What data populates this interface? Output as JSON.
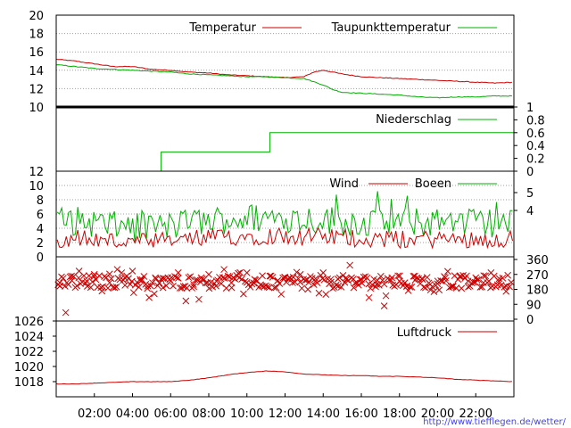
{
  "credit": "http://www.tiefflegen.de/wetter/",
  "x_ticks": [
    "02:00",
    "04:00",
    "06:00",
    "08:00",
    "10:00",
    "12:00",
    "14:00",
    "16:00",
    "18:00",
    "20:00",
    "22:00"
  ],
  "colors": {
    "red": "#cc0000",
    "green": "#00b000",
    "grid": "#a0a0a0",
    "axis": "#000000"
  },
  "chart_data": [
    {
      "type": "line",
      "x_unit": "hours",
      "x_range": [
        0,
        24
      ],
      "ylim": [
        10,
        20
      ],
      "y_ticks": [
        "10",
        "12",
        "14",
        "16",
        "18",
        "20"
      ],
      "grid": true,
      "legend": "top",
      "series": [
        {
          "name": "Temperatur",
          "color": "#cc0000",
          "x": [
            0,
            1,
            2,
            3,
            4,
            5,
            6,
            7,
            8,
            9,
            10,
            11,
            12,
            13,
            13.5,
            14,
            15,
            16,
            17,
            18,
            19,
            20,
            21,
            22,
            23,
            24
          ],
          "y": [
            15.2,
            15.0,
            14.7,
            14.4,
            14.4,
            14.1,
            14.0,
            13.8,
            13.7,
            13.5,
            13.4,
            13.3,
            13.2,
            13.3,
            13.8,
            14.0,
            13.6,
            13.3,
            13.2,
            13.1,
            13.0,
            12.9,
            12.8,
            12.7,
            12.6,
            12.7
          ]
        },
        {
          "name": "Taupunkttemperatur",
          "color": "#00b000",
          "x": [
            0,
            1,
            2,
            3,
            4,
            5,
            6,
            7,
            8,
            9,
            10,
            11,
            12,
            13,
            14,
            14.5,
            15,
            16,
            17,
            18,
            19,
            20,
            21,
            22,
            23,
            24
          ],
          "y": [
            14.6,
            14.4,
            14.2,
            14.1,
            14.0,
            13.9,
            13.8,
            13.6,
            13.5,
            13.4,
            13.3,
            13.3,
            13.2,
            13.1,
            12.4,
            11.9,
            11.6,
            11.5,
            11.4,
            11.3,
            11.1,
            11.0,
            11.1,
            11.1,
            11.2,
            11.2
          ]
        }
      ]
    },
    {
      "type": "line",
      "x_unit": "hours",
      "x_range": [
        0,
        24
      ],
      "ylim": [
        0,
        1
      ],
      "y_ticks": [
        "0",
        "0.2",
        "0.4",
        "0.6",
        "0.8",
        "1"
      ],
      "legend": "top-right",
      "series": [
        {
          "name": "Niederschlag",
          "color": "#00b000",
          "x": [
            0,
            5.5,
            5.5,
            11.2,
            11.2,
            24
          ],
          "y": [
            0,
            0,
            0.3,
            0.3,
            0.6,
            0.6
          ]
        }
      ]
    },
    {
      "type": "line",
      "x_unit": "hours",
      "x_range": [
        0,
        24
      ],
      "ylim": [
        0,
        12
      ],
      "y_ticks": [
        "0",
        "2",
        "4",
        "6",
        "8",
        "10",
        "12"
      ],
      "y2_ticks": [
        "4",
        "5"
      ],
      "grid": true,
      "legend": "top-right",
      "series": [
        {
          "name": "Wind",
          "color": "#cc0000",
          "x": [
            0,
            1,
            2,
            3,
            4,
            5,
            6,
            7,
            8,
            9,
            10,
            11,
            12,
            13,
            14,
            15,
            16,
            17,
            18,
            19,
            20,
            21,
            22,
            23,
            24
          ],
          "y": [
            2.5,
            2.8,
            2.4,
            2.2,
            2.0,
            2.1,
            2.2,
            2.5,
            2.6,
            2.8,
            2.9,
            3.0,
            3.0,
            2.8,
            2.8,
            2.7,
            2.6,
            2.5,
            2.4,
            2.5,
            2.5,
            2.5,
            2.6,
            2.5,
            2.4
          ]
        },
        {
          "name": "Boeen",
          "color": "#00b000",
          "x": [
            0,
            1,
            2,
            3,
            4,
            5,
            6,
            7,
            8,
            9,
            10,
            11,
            12,
            13,
            14,
            15,
            16,
            17,
            18,
            19,
            20,
            21,
            22,
            23,
            24
          ],
          "y": [
            5.0,
            5.0,
            4.8,
            4.3,
            4.0,
            4.1,
            4.3,
            4.8,
            5.0,
            5.3,
            5.4,
            5.5,
            5.5,
            5.3,
            5.2,
            5.0,
            4.8,
            4.8,
            4.7,
            4.8,
            4.9,
            4.8,
            4.9,
            4.8,
            4.6
          ]
        }
      ]
    },
    {
      "type": "scatter",
      "x_unit": "hours",
      "x_range": [
        0,
        24
      ],
      "ylim": [
        0,
        360
      ],
      "y2_ticks": [
        "0",
        "90",
        "180",
        "270",
        "360"
      ],
      "marker": "x",
      "series": [
        {
          "color": "#cc0000",
          "x": [
            0.2,
            0.5,
            0.8,
            1.2,
            1.6,
            2.0,
            2.4,
            2.8,
            3.2,
            3.6,
            4.0,
            4.4,
            4.8,
            5.2,
            5.6,
            6.0,
            6.4,
            6.8,
            7.2,
            7.6,
            8.0,
            8.4,
            8.8,
            9.2,
            9.6,
            10.0,
            10.4,
            10.8,
            11.2,
            11.6,
            12.0,
            12.4,
            12.8,
            13.2,
            13.6,
            14.0,
            14.4,
            14.8,
            15.2,
            15.6,
            16.0,
            16.4,
            16.8,
            17.2,
            17.6,
            18.0,
            18.4,
            18.8,
            19.2,
            19.6,
            20.0,
            20.4,
            20.8,
            21.2,
            21.6,
            22.0,
            22.4,
            22.8,
            23.2,
            23.6
          ],
          "y": [
            200,
            40,
            260,
            290,
            230,
            270,
            170,
            220,
            300,
            250,
            290,
            240,
            200,
            250,
            190,
            230,
            280,
            110,
            210,
            250,
            270,
            230,
            300,
            190,
            250,
            280,
            240,
            200,
            260,
            230,
            250,
            220,
            270,
            180,
            230,
            280,
            240,
            200,
            250,
            190,
            240,
            130,
            210,
            80,
            250,
            230,
            200,
            260,
            240,
            210,
            230,
            250,
            200,
            260,
            230,
            250,
            220,
            280,
            230,
            200
          ]
        }
      ]
    },
    {
      "type": "line",
      "x_unit": "hours",
      "x_range": [
        0,
        24
      ],
      "ylim": [
        1016,
        1026
      ],
      "y_ticks": [
        "1018",
        "1020",
        "1022",
        "1024",
        "1026"
      ],
      "legend": "top-right",
      "series": [
        {
          "name": "Luftdruck",
          "color": "#cc0000",
          "x": [
            0,
            1,
            2,
            3,
            4,
            5,
            6,
            7,
            8,
            9,
            10,
            11,
            12,
            13,
            14,
            15,
            16,
            17,
            18,
            19,
            20,
            21,
            22,
            23,
            24
          ],
          "y": [
            1017.7,
            1017.7,
            1017.8,
            1017.9,
            1018.0,
            1018.0,
            1018.0,
            1018.2,
            1018.5,
            1018.9,
            1019.2,
            1019.4,
            1019.3,
            1019.0,
            1018.9,
            1018.8,
            1018.8,
            1018.7,
            1018.7,
            1018.6,
            1018.5,
            1018.3,
            1018.2,
            1018.1,
            1018.0
          ]
        }
      ]
    }
  ]
}
